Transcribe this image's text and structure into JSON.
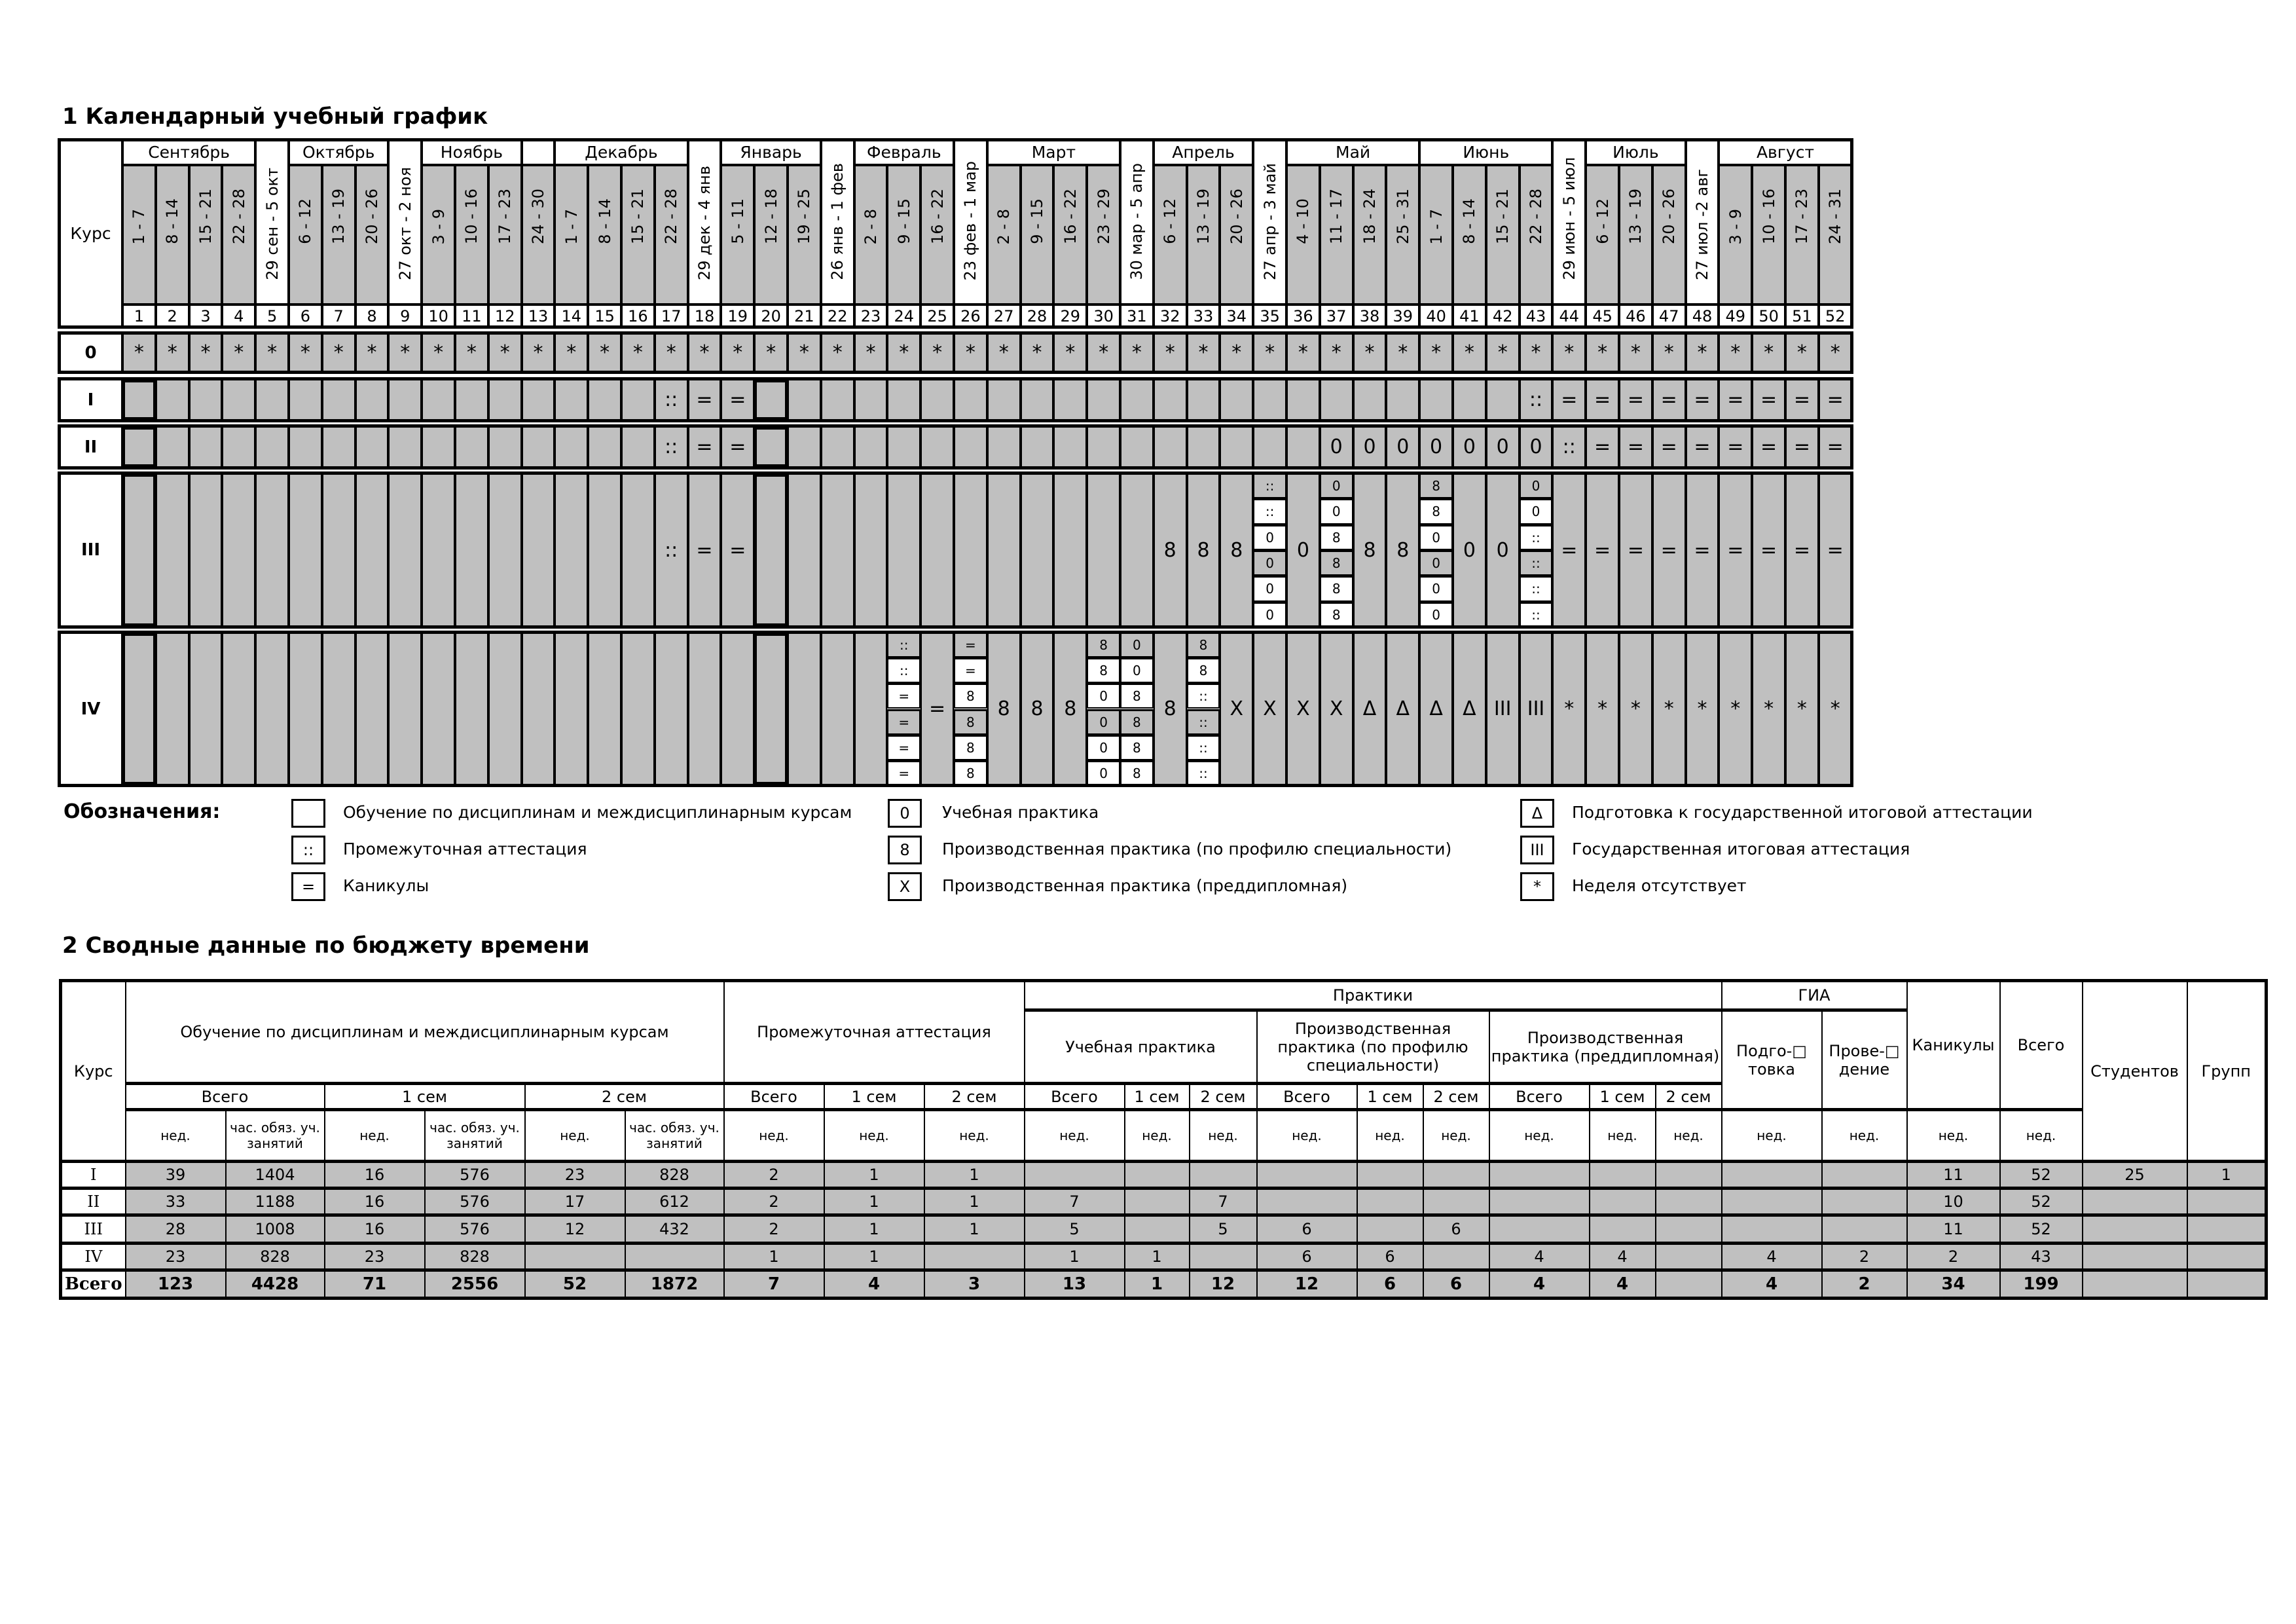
{
  "section1_title": "1 Календарный учебный график",
  "grid": {
    "course_header": "Курс",
    "months": [
      {
        "name": "Сентябрь",
        "first_week": 1,
        "last_week": 4
      },
      {
        "name": "Октябрь",
        "first_week": 6,
        "last_week": 8
      },
      {
        "name": "Ноябрь",
        "first_week": 10,
        "last_week": 12
      },
      {
        "name": "",
        "first_week": 13,
        "last_week": 13
      },
      {
        "name": "Декабрь",
        "first_week": 14,
        "last_week": 17
      },
      {
        "name": "Январь",
        "first_week": 19,
        "last_week": 21
      },
      {
        "name": "Февраль",
        "first_week": 23,
        "last_week": 25
      },
      {
        "name": "Март",
        "first_week": 27,
        "last_week": 30
      },
      {
        "name": "Апрель",
        "first_week": 32,
        "last_week": 34
      },
      {
        "name": "Май",
        "first_week": 36,
        "last_week": 39
      },
      {
        "name": "Июнь",
        "first_week": 40,
        "last_week": 43
      },
      {
        "name": "Июль",
        "first_week": 45,
        "last_week": 47
      },
      {
        "name": "Август",
        "first_week": 49,
        "last_week": 52
      }
    ],
    "weeks": [
      {
        "num": "1",
        "dates": "1 - 7"
      },
      {
        "num": "2",
        "dates": "8 - 14"
      },
      {
        "num": "3",
        "dates": "15 - 21"
      },
      {
        "num": "4",
        "dates": "22 - 28"
      },
      {
        "num": "5",
        "dates": "29 сен - 5 окт",
        "transition": true
      },
      {
        "num": "6",
        "dates": "6 - 12"
      },
      {
        "num": "7",
        "dates": "13 - 19"
      },
      {
        "num": "8",
        "dates": "20 - 26"
      },
      {
        "num": "9",
        "dates": "27 окт - 2 ноя",
        "transition": true
      },
      {
        "num": "10",
        "dates": "3 - 9"
      },
      {
        "num": "11",
        "dates": "10 - 16"
      },
      {
        "num": "12",
        "dates": "17 - 23"
      },
      {
        "num": "13",
        "dates": "24 - 30"
      },
      {
        "num": "14",
        "dates": "1 - 7"
      },
      {
        "num": "15",
        "dates": "8 - 14"
      },
      {
        "num": "16",
        "dates": "15 - 21"
      },
      {
        "num": "17",
        "dates": "22 - 28"
      },
      {
        "num": "18",
        "dates": "29 дек - 4 янв",
        "transition": true
      },
      {
        "num": "19",
        "dates": "5 - 11"
      },
      {
        "num": "20",
        "dates": "12 - 18"
      },
      {
        "num": "21",
        "dates": "19 - 25"
      },
      {
        "num": "22",
        "dates": "26 янв - 1 фев",
        "transition": true
      },
      {
        "num": "23",
        "dates": "2 - 8"
      },
      {
        "num": "24",
        "dates": "9 - 15"
      },
      {
        "num": "25",
        "dates": "16 - 22"
      },
      {
        "num": "26",
        "dates": "23 фев - 1 мар",
        "transition": true
      },
      {
        "num": "27",
        "dates": "2 - 8"
      },
      {
        "num": "28",
        "dates": "9 - 15"
      },
      {
        "num": "29",
        "dates": "16 - 22"
      },
      {
        "num": "30",
        "dates": "23 - 29"
      },
      {
        "num": "31",
        "dates": "30 мар - 5 апр",
        "transition": true
      },
      {
        "num": "32",
        "dates": "6 - 12"
      },
      {
        "num": "33",
        "dates": "13 - 19"
      },
      {
        "num": "34",
        "dates": "20 - 26"
      },
      {
        "num": "35",
        "dates": "27 апр - 3 май",
        "transition": true
      },
      {
        "num": "36",
        "dates": "4 - 10"
      },
      {
        "num": "37",
        "dates": "11 - 17"
      },
      {
        "num": "38",
        "dates": "18 - 24"
      },
      {
        "num": "39",
        "dates": "25 - 31"
      },
      {
        "num": "40",
        "dates": "1 - 7"
      },
      {
        "num": "41",
        "dates": "8 - 14"
      },
      {
        "num": "42",
        "dates": "15 - 21"
      },
      {
        "num": "43",
        "dates": "22 - 28"
      },
      {
        "num": "44",
        "dates": "29 июн - 5 июл",
        "transition": true
      },
      {
        "num": "45",
        "dates": "6 - 12"
      },
      {
        "num": "46",
        "dates": "13 - 19"
      },
      {
        "num": "47",
        "dates": "20 - 26"
      },
      {
        "num": "48",
        "dates": "27 июл -2 авг",
        "transition": true
      },
      {
        "num": "49",
        "dates": "3 - 9"
      },
      {
        "num": "50",
        "dates": "10 - 16"
      },
      {
        "num": "51",
        "dates": "17 - 23"
      },
      {
        "num": "52",
        "dates": "24 - 31"
      }
    ],
    "highlighted_weeks": [
      1,
      20
    ],
    "courses": [
      {
        "label": "0",
        "cells": [
          "*",
          "*",
          "*",
          "*",
          "*",
          "*",
          "*",
          "*",
          "*",
          "*",
          "*",
          "*",
          "*",
          "*",
          "*",
          "*",
          "*",
          "*",
          "*",
          "*",
          "*",
          "*",
          "*",
          "*",
          "*",
          "*",
          "*",
          "*",
          "*",
          "*",
          "*",
          "*",
          "*",
          "*",
          "*",
          "*",
          "*",
          "*",
          "*",
          "*",
          "*",
          "*",
          "*",
          "*",
          "*",
          "*",
          "*",
          "*",
          "*",
          "*",
          "*",
          "*"
        ]
      },
      {
        "label": "I",
        "cells": [
          "",
          "",
          "",
          "",
          "",
          "",
          "",
          "",
          "",
          "",
          "",
          "",
          "",
          "",
          "",
          "",
          "::",
          "=",
          "=",
          "",
          "",
          "",
          "",
          "",
          "",
          "",
          "",
          "",
          "",
          "",
          "",
          "",
          "",
          "",
          "",
          "",
          "",
          "",
          "",
          "",
          "",
          "",
          "::",
          "=",
          "=",
          "=",
          "=",
          "=",
          "=",
          "=",
          "=",
          "="
        ]
      },
      {
        "label": "II",
        "cells": [
          "",
          "",
          "",
          "",
          "",
          "",
          "",
          "",
          "",
          "",
          "",
          "",
          "",
          "",
          "",
          "",
          "::",
          "=",
          "=",
          "",
          "",
          "",
          "",
          "",
          "",
          "",
          "",
          "",
          "",
          "",
          "",
          "",
          "",
          "",
          "",
          "",
          "0",
          "0",
          "0",
          "0",
          "0",
          "0",
          "0",
          "::",
          "=",
          "=",
          "=",
          "=",
          "=",
          "=",
          "=",
          "="
        ]
      },
      {
        "label": "III",
        "cells": [
          "",
          "",
          "",
          "",
          "",
          "",
          "",
          "",
          "",
          "",
          "",
          "",
          "",
          "",
          "",
          "",
          "::",
          "=",
          "=",
          "",
          "",
          "",
          "",
          "",
          "",
          "",
          "",
          "",
          "",
          "",
          "",
          "8",
          "8",
          "8",
          [
            "::",
            "::",
            "0",
            "0",
            "0",
            "0"
          ],
          "0",
          [
            "0",
            "0",
            "8",
            "8",
            "8",
            "8"
          ],
          "8",
          "8",
          [
            "8",
            "8",
            "0",
            "0",
            "0",
            "0"
          ],
          "0",
          "0",
          [
            "0",
            "0",
            "::",
            "::",
            "::",
            "::"
          ],
          "=",
          "=",
          "=",
          "=",
          "=",
          "=",
          "=",
          "=",
          "="
        ]
      },
      {
        "label": "IV",
        "cells": [
          "",
          "",
          "",
          "",
          "",
          "",
          "",
          "",
          "",
          "",
          "",
          "",
          "",
          "",
          "",
          "",
          "",
          "",
          "",
          "",
          "",
          "",
          "",
          [
            "::",
            "::",
            "=",
            "=",
            "=",
            "="
          ],
          "=",
          [
            "=",
            "=",
            "8",
            "8",
            "8",
            "8"
          ],
          "8",
          "8",
          "8",
          [
            "8",
            "8",
            "0",
            "0",
            "0",
            "0"
          ],
          [
            "0",
            "0",
            "8",
            "8",
            "8",
            "8"
          ],
          "8",
          [
            "8",
            "8",
            "::",
            "::",
            "::",
            "::"
          ],
          "X",
          "X",
          "X",
          "X",
          "Δ",
          "Δ",
          "Δ",
          "Δ",
          "III",
          "III",
          "*",
          "*",
          "*",
          "*",
          "*",
          "*",
          "*",
          "*",
          "*"
        ]
      }
    ]
  },
  "legend": {
    "title": "Обозначения:",
    "items": [
      {
        "symbol": "",
        "text": "Обучение по дисциплинам и междисциплинарным курсам"
      },
      {
        "symbol": "::",
        "text": "Промежуточная аттестация"
      },
      {
        "symbol": "=",
        "text": "Каникулы"
      },
      {
        "symbol": "0",
        "text": "Учебная практика"
      },
      {
        "symbol": "8",
        "text": "Производственная практика (по профилю специальности)"
      },
      {
        "symbol": "X",
        "text": "Производственная практика (преддипломная)"
      },
      {
        "symbol": "Δ",
        "text": "Подготовка к государственной итоговой аттестации"
      },
      {
        "symbol": "III",
        "text": "Государственная итоговая аттестация"
      },
      {
        "symbol": "*",
        "text": "Неделя отсутствует"
      }
    ]
  },
  "section2_title": "2 Сводные данные по бюджету времени",
  "budget": {
    "h_course": "Курс",
    "h_study": "Обучение по дисциплинам и междисциплинарным курсам",
    "h_interim": "Промежуточная аттестация",
    "h_practice": "Практики",
    "h_gia": "ГИА",
    "h_holidays": "Каникулы",
    "h_total": "Всего",
    "h_students": "Студентов",
    "h_groups": "Групп",
    "h_edu_practice": "Учебная практика",
    "h_prof_practice": "Производственная практика (по профилю специальности)",
    "h_pre_practice": "Производственная практика (преддипломная)",
    "h_gia_prep": "Подго-□ товка",
    "h_gia_conduct": "Прове-□ дение",
    "h_all": "Всего",
    "h_sem1": "1 сем",
    "h_sem2": "2 сем",
    "u_weeks": "нед.",
    "u_hours": "час. обяз. уч. занятий",
    "rows": [
      [
        "I",
        "39",
        "1404",
        "16",
        "576",
        "23",
        "828",
        "2",
        "1",
        "1",
        "",
        "",
        "",
        "",
        "",
        "",
        "",
        "",
        "",
        "",
        "",
        "11",
        "52",
        "25",
        "1"
      ],
      [
        "II",
        "33",
        "1188",
        "16",
        "576",
        "17",
        "612",
        "2",
        "1",
        "1",
        "7",
        "",
        "7",
        "",
        "",
        "",
        "",
        "",
        "",
        "",
        "",
        "10",
        "52",
        "",
        ""
      ],
      [
        "III",
        "28",
        "1008",
        "16",
        "576",
        "12",
        "432",
        "2",
        "1",
        "1",
        "5",
        "",
        "5",
        "6",
        "",
        "6",
        "",
        "",
        "",
        "",
        "",
        "11",
        "52",
        "",
        ""
      ],
      [
        "IV",
        "23",
        "828",
        "23",
        "828",
        "",
        "",
        "1",
        "1",
        "",
        "1",
        "1",
        "",
        "6",
        "6",
        "",
        "4",
        "4",
        "",
        "4",
        "2",
        "2",
        "43",
        "",
        ""
      ]
    ],
    "total": [
      "Всего",
      "123",
      "4428",
      "71",
      "2556",
      "52",
      "1872",
      "7",
      "4",
      "3",
      "13",
      "1",
      "12",
      "12",
      "6",
      "6",
      "4",
      "4",
      "",
      "4",
      "2",
      "34",
      "199",
      "",
      ""
    ]
  }
}
